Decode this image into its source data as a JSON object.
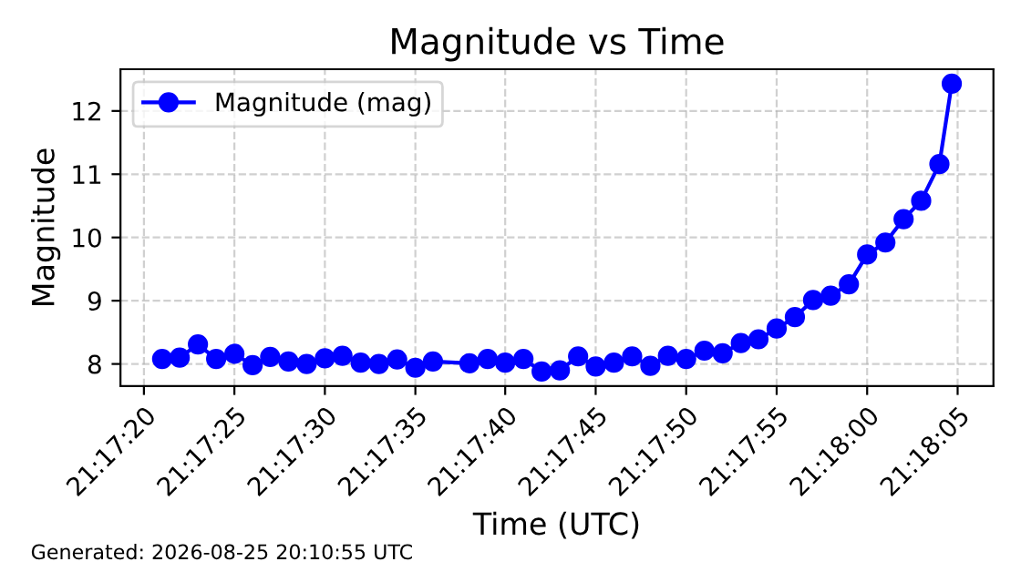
{
  "chart_data": {
    "type": "line",
    "title": "Magnitude vs Time",
    "xlabel": "Time (UTC)",
    "ylabel": "Magnitude",
    "annotations": [
      "Generated: 2026-08-25 20:10:55 UTC"
    ],
    "x": [
      21.28917,
      21.28944,
      21.28972,
      21.29,
      21.29028,
      21.29056,
      21.29083,
      21.29111,
      21.29139,
      21.29167,
      21.29194,
      21.29222,
      21.2925,
      21.29278,
      21.29306,
      21.29333,
      21.29389,
      21.29417,
      21.29444,
      21.29472,
      21.295,
      21.29528,
      21.29556,
      21.29583,
      21.29611,
      21.29639,
      21.29667,
      21.29694,
      21.29722,
      21.2975,
      21.29778,
      21.29806,
      21.29833,
      21.29861,
      21.29889,
      21.29917,
      21.29944,
      21.29972,
      21.3,
      21.30028,
      21.30056,
      21.30083,
      21.30111,
      21.3013
    ],
    "series": [
      {
        "name": "Magnitude (mag)",
        "color": "#0000ff",
        "values": [
          8.08,
          8.1,
          8.31,
          8.08,
          8.16,
          7.98,
          8.11,
          8.04,
          8.0,
          8.09,
          8.13,
          8.02,
          8.0,
          8.07,
          7.94,
          8.04,
          8.01,
          8.08,
          8.02,
          8.08,
          7.88,
          7.9,
          8.12,
          7.96,
          8.02,
          8.12,
          7.97,
          8.13,
          8.08,
          8.21,
          8.17,
          8.33,
          8.39,
          8.56,
          8.74,
          9.01,
          9.08,
          9.26,
          9.73,
          9.92,
          10.29,
          10.58,
          11.16,
          12.43
        ]
      }
    ],
    "xlim": [
      21.28853,
      21.30194
    ],
    "xticks": [
      {
        "value": 21.28889,
        "label": "21:17:20"
      },
      {
        "value": 21.29028,
        "label": "21:17:25"
      },
      {
        "value": 21.29167,
        "label": "21:17:30"
      },
      {
        "value": 21.29306,
        "label": "21:17:35"
      },
      {
        "value": 21.29444,
        "label": "21:17:40"
      },
      {
        "value": 21.29583,
        "label": "21:17:45"
      },
      {
        "value": 21.29722,
        "label": "21:17:50"
      },
      {
        "value": 21.29861,
        "label": "21:17:55"
      },
      {
        "value": 21.3,
        "label": "21:18:00"
      },
      {
        "value": 21.30139,
        "label": "21:18:05"
      }
    ],
    "ylim": [
      7.65,
      12.66
    ],
    "yticks": [
      8,
      9,
      10,
      11,
      12
    ],
    "grid": true,
    "legend": "top left",
    "marker": "circle",
    "line_style": "solid"
  }
}
